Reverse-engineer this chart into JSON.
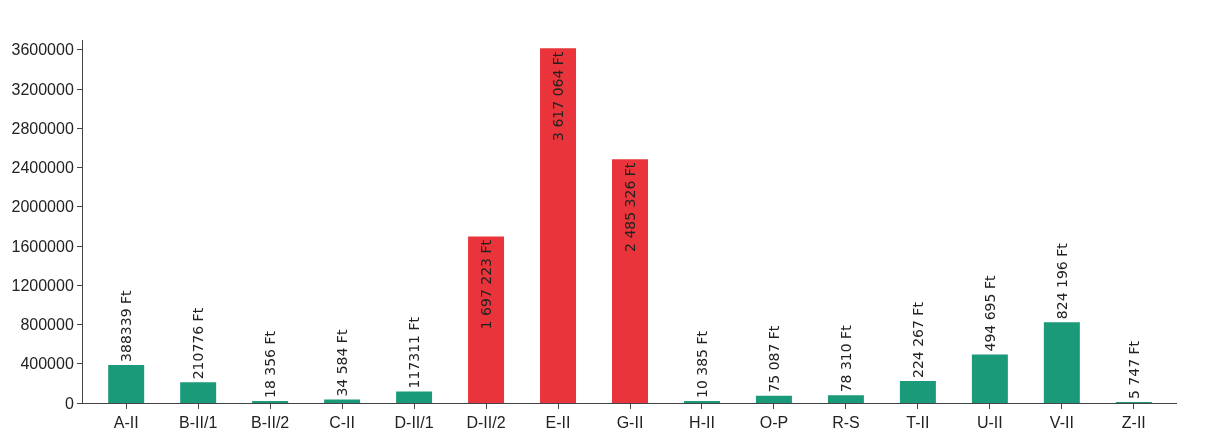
{
  "chart_data": {
    "type": "bar",
    "categories": [
      "A-II",
      "B-II/1",
      "B-II/2",
      "C-II",
      "D-II/1",
      "D-II/2",
      "E-II",
      "G-II",
      "H-II",
      "O-P",
      "R-S",
      "T-II",
      "U-II",
      "V-II",
      "Z-II"
    ],
    "values": [
      388339,
      210776,
      18356,
      34584,
      117311,
      1697223,
      3617064,
      2485326,
      10385,
      75087,
      78310,
      224267,
      494695,
      824196,
      5747
    ],
    "colors": [
      "#1a9a78",
      "#1a9a78",
      "#1a9a78",
      "#1a9a78",
      "#1a9a78",
      "#e8343a",
      "#e8343a",
      "#e8343a",
      "#1a9a78",
      "#1a9a78",
      "#1a9a78",
      "#1a9a78",
      "#1a9a78",
      "#1a9a78",
      "#1a9a78"
    ],
    "value_labels": [
      "388339 Ft",
      "210776 Ft",
      "18 356 Ft",
      "34 584 Ft",
      "117311 Ft",
      "1 697 223 Ft",
      "3 617 064 Ft",
      "2 485 326 Ft",
      "10 385 Ft",
      "75 087 Ft",
      "78 310 Ft",
      "224 267 Ft",
      "494 695 Ft",
      "824 196 Ft",
      "5 747 Ft"
    ],
    "ylim": [
      0,
      3700000
    ],
    "yticks": [
      0,
      400000,
      800000,
      1200000,
      1600000,
      2000000,
      2400000,
      2800000,
      3200000,
      3600000
    ]
  }
}
